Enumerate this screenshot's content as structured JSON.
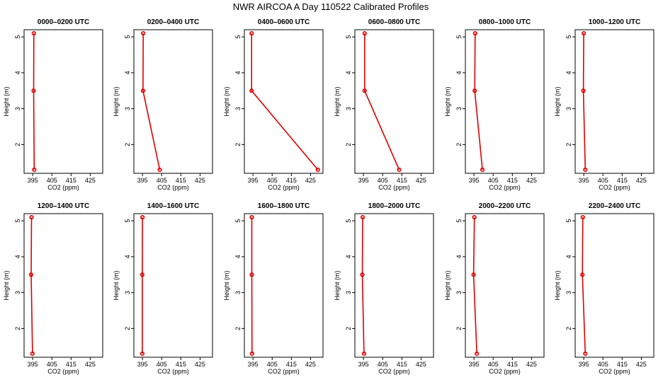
{
  "title": "NWR AIRCOA A  Day 110522  Calibrated Profiles",
  "chart_data": {
    "type": "line",
    "title": "NWR AIRCOA A  Day 110522  Calibrated Profiles",
    "xlabel": "CO2 (ppm)",
    "ylabel": "Height (m)",
    "xlim": [
      392,
      430
    ],
    "ylim": [
      1.2,
      5.2
    ],
    "xticks": [
      395,
      405,
      415,
      425
    ],
    "yticks": [
      2,
      3,
      4,
      5
    ],
    "panels": [
      {
        "title": "0000–0200 UTC",
        "x": [
          395.6,
          395.5,
          395.8
        ],
        "y": [
          5.1,
          3.5,
          1.3
        ]
      },
      {
        "title": "0200–0400 UTC",
        "x": [
          395.4,
          395.3,
          404.0
        ],
        "y": [
          5.1,
          3.5,
          1.3
        ]
      },
      {
        "title": "0400–0600 UTC",
        "x": [
          394.3,
          394.3,
          428.8
        ],
        "y": [
          5.1,
          3.5,
          1.3
        ]
      },
      {
        "title": "0600–0800 UTC",
        "x": [
          395.6,
          395.6,
          413.6
        ],
        "y": [
          5.1,
          3.5,
          1.3
        ]
      },
      {
        "title": "0800–1000 UTC",
        "x": [
          395.6,
          395.4,
          399.4
        ],
        "y": [
          5.1,
          3.5,
          1.3
        ]
      },
      {
        "title": "1000–1200 UTC",
        "x": [
          395.0,
          394.8,
          395.8
        ],
        "y": [
          5.1,
          3.5,
          1.3
        ]
      },
      {
        "title": "1200–1400 UTC",
        "x": [
          394.4,
          394.2,
          394.9
        ],
        "y": [
          5.1,
          3.5,
          1.3
        ]
      },
      {
        "title": "1400–1600 UTC",
        "x": [
          395.0,
          394.9,
          394.9
        ],
        "y": [
          5.1,
          3.5,
          1.3
        ]
      },
      {
        "title": "1600–1800 UTC",
        "x": [
          394.4,
          394.4,
          394.5
        ],
        "y": [
          5.1,
          3.5,
          1.3
        ]
      },
      {
        "title": "1800–2000 UTC",
        "x": [
          394.6,
          394.4,
          395.3
        ],
        "y": [
          5.1,
          3.5,
          1.3
        ]
      },
      {
        "title": "2000–2200 UTC",
        "x": [
          395.2,
          394.8,
          396.5
        ],
        "y": [
          5.1,
          3.5,
          1.3
        ]
      },
      {
        "title": "2200–2400 UTC",
        "x": [
          394.5,
          394.3,
          395.8
        ],
        "y": [
          5.1,
          3.5,
          1.3
        ]
      }
    ]
  }
}
